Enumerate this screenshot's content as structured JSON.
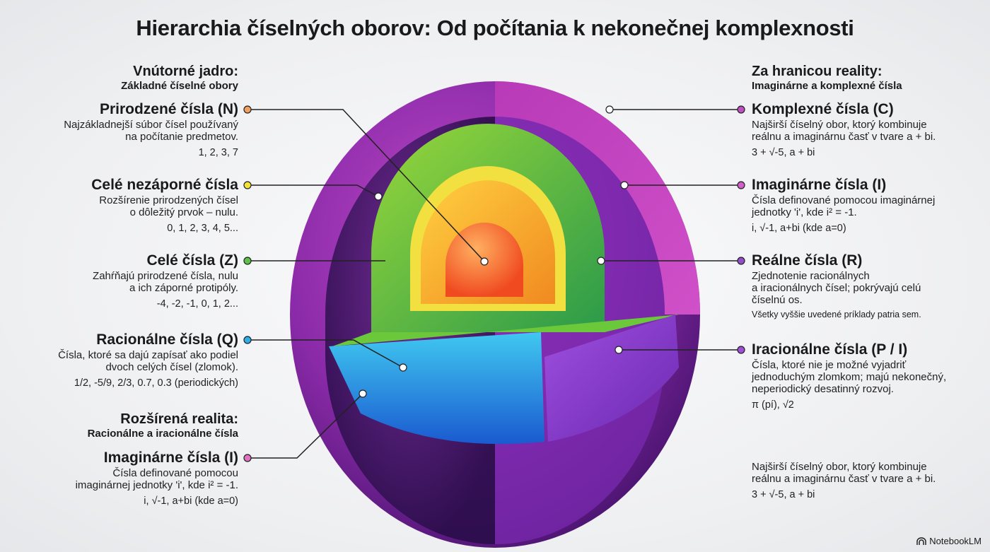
{
  "title": "Hierarchia číselných oborov: Od počítania k nekonečnej komplexnosti",
  "left": {
    "section1": {
      "heading": "Vnútorné jadro:",
      "sub": "Základné číselné obory"
    },
    "items": [
      {
        "name": "Prirodzené čísla (N)",
        "desc1": "Najzákladnejší súbor čísel používaný",
        "desc2": "na počítanie predmetov.",
        "examples": "1, 2, 3, 7",
        "color": "#f0a060"
      },
      {
        "name": "Celé nezáporné čísla",
        "desc1": "Rozšírenie prirodzených čísel",
        "desc2": "o dôležitý prvok – nulu.",
        "examples": "0, 1, 2, 3, 4, 5...",
        "color": "#f2e23a"
      },
      {
        "name": "Celé čísla (Z)",
        "desc1": "Zahŕňajú prirodzené čísla, nulu",
        "desc2": "a ich záporné protipóly.",
        "examples": "-4, -2, -1, 0, 1, 2...",
        "color": "#5cc24a"
      },
      {
        "name": "Racionálne čísla (Q)",
        "desc1": "Čísla, ktoré sa dajú zapísať ako podiel",
        "desc2": "dvoch celých čísel (zlomok).",
        "examples": "1/2, -5/9, 2/3, 0.7, 0.3 (periodických)",
        "color": "#2eaee8"
      }
    ],
    "section2": {
      "heading": "Rozšírená realita:",
      "sub": "Racionálne a iracionálne čísla"
    },
    "item5": {
      "name": "Imaginárne čísla (I)",
      "desc1": "Čísla definované pomocou",
      "desc2": "imaginárnej jednotky 'i', kde i² = -1.",
      "examples": "i, √-1, a+bi (kde a=0)",
      "color": "#e070c0"
    }
  },
  "right": {
    "section": {
      "heading": "Za hranicou reality:",
      "sub": "Imaginárne a komplexné čísla"
    },
    "items": [
      {
        "name": "Komplexné čísla (C)",
        "desc1": "Najširší číselný obor, ktorý kombinuje",
        "desc2": "reálnu a imaginárnu časť v tvare a + bi.",
        "examples": "3 + √-5, a + bi",
        "color": "#c050c0"
      },
      {
        "name": "Imaginárne čísla (I)",
        "desc1": "Čísla definované pomocou imaginárnej",
        "desc2": "jednotky 'i', kde i² = -1.",
        "examples": "i, √-1, a+bi (kde a=0)",
        "color": "#d060c8"
      },
      {
        "name": "Reálne čísla (R)",
        "desc1": "Zjednotenie racionálnych",
        "desc2": "a iracionálnych čísel; pokrývajú celú",
        "desc3": "číselnú os.",
        "note": "Všetky vyššie uvedené príklady patria sem.",
        "color": "#9050c8"
      },
      {
        "name": "Iracionálne čísla (P / I)",
        "desc1": "Čísla, ktoré nie je možné vyjadriť",
        "desc2": "jednoduchým zlomkom; majú nekonečný,",
        "desc3": "neperiodický desatinný rozvoj.",
        "examples": "π (pí), √2",
        "color": "#a050d8"
      }
    ],
    "extra": {
      "desc1": "Najširší číselný obor, ktorý kombinuje",
      "desc2": "reálnu a imaginárnu časť v tvare a + bi.",
      "examples": "3 + √-5, a + bi"
    }
  },
  "logo": "NotebookLM"
}
